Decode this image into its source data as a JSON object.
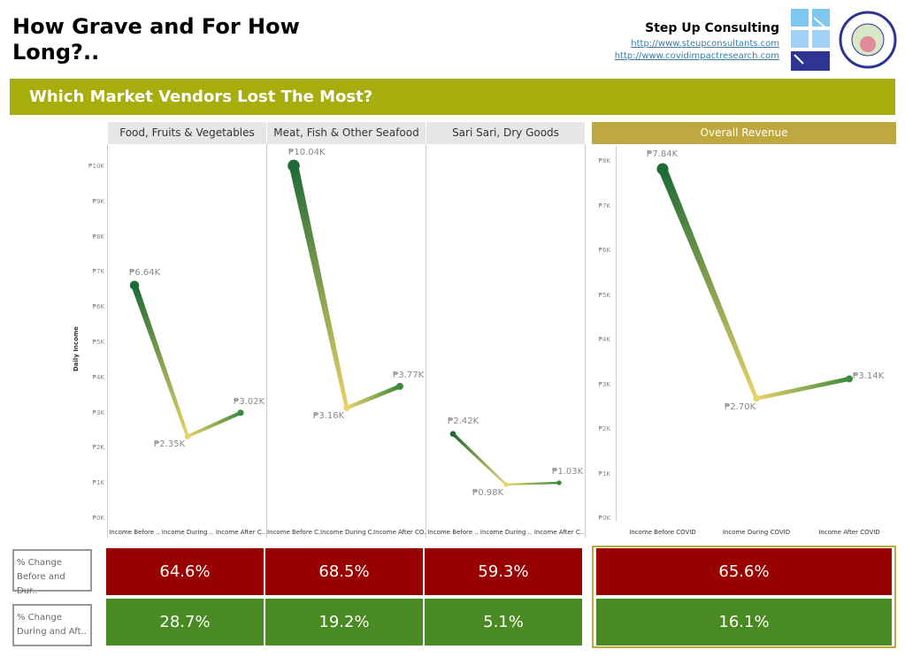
{
  "header": {
    "title": "How Grave and For How Long?..",
    "company": "Step Up Consulting",
    "links": [
      "http://www.steupconsultants.com",
      "http://www.covidimpactresearch.com"
    ],
    "seal_text": "CITY OF TAGBILARAN OFFICIAL SEAL"
  },
  "banner": "Which Market Vendors Lost The Most?",
  "row_labels": [
    "% Change Before and Dur..",
    "% Change During and Aft.."
  ],
  "colors": {
    "decrease": "#990000",
    "increase": "#4a8a23",
    "line_high": "#1e6b35",
    "line_low": "#e8d26a",
    "overall_header": "#c0a840",
    "banner": "#a6ad0c"
  },
  "chart_data": [
    {
      "type": "line",
      "ylabel": "Daily Income",
      "ylim": [
        0,
        10
      ],
      "yticks": [
        "₱0K",
        "₱1K",
        "₱2K",
        "₱3K",
        "₱4K",
        "₱5K",
        "₱6K",
        "₱7K",
        "₱8K",
        "₱9K",
        "₱10K"
      ],
      "panels": [
        {
          "title": "Food, Fruits & Vegetables",
          "categories": [
            "Income Before ..",
            "Income During ..",
            "Income After C.."
          ],
          "values": [
            6.64,
            2.35,
            3.02
          ],
          "labels": [
            "₱6.64K",
            "₱2.35K",
            "₱3.02K"
          ],
          "pct_change": [
            "64.6%",
            "28.7%"
          ]
        },
        {
          "title": "Meat, Fish & Other Seafood",
          "categories": [
            "Income Before C..",
            "Income During C..",
            "Income After CO.."
          ],
          "values": [
            10.04,
            3.16,
            3.77
          ],
          "labels": [
            "₱10.04K",
            "₱3.16K",
            "₱3.77K"
          ],
          "pct_change": [
            "68.5%",
            "19.2%"
          ]
        },
        {
          "title": "Sari Sari, Dry Goods",
          "categories": [
            "Income Before ..",
            "Income During ..",
            "Income After C.."
          ],
          "values": [
            2.42,
            0.98,
            1.03
          ],
          "labels": [
            "₱2.42K",
            "₱0.98K",
            "₱1.03K"
          ],
          "pct_change": [
            "59.3%",
            "5.1%"
          ]
        }
      ]
    },
    {
      "type": "line",
      "title": "Overall Revenue",
      "ylim": [
        0,
        8
      ],
      "yticks": [
        "₱0K",
        "₱1K",
        "₱2K",
        "₱3K",
        "₱4K",
        "₱5K",
        "₱6K",
        "₱7K",
        "₱8K"
      ],
      "categories": [
        "Income Before COVID",
        "Income During COVID",
        "Income After COVID"
      ],
      "values": [
        7.84,
        2.7,
        3.14
      ],
      "labels": [
        "₱7.84K",
        "₱2.70K",
        "₱3.14K"
      ],
      "pct_change": [
        "65.6%",
        "16.1%"
      ]
    }
  ]
}
